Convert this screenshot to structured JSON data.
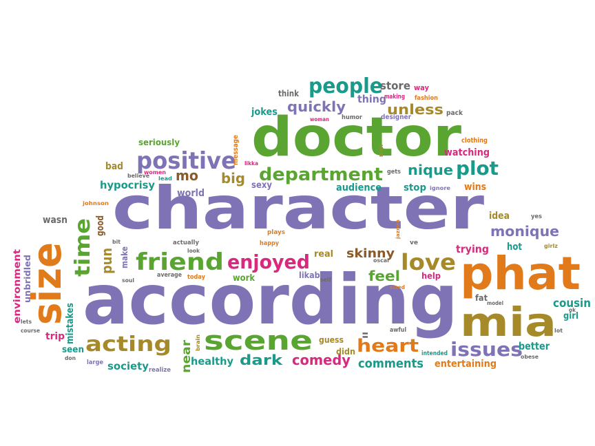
{
  "colors": {
    "purple": "#7f73b5",
    "green": "#5aa532",
    "orange": "#e07a1a",
    "teal": "#1a9a8a",
    "olive": "#a68a2a",
    "pink": "#d8297e",
    "brown": "#8a5a2a",
    "gray": "#6a6a6a"
  },
  "words": [
    {
      "text": "character",
      "color": "purple"
    },
    {
      "text": "according",
      "color": "purple"
    },
    {
      "text": "doctor",
      "color": "green"
    },
    {
      "text": "phat",
      "color": "orange"
    },
    {
      "text": "size",
      "color": "orange"
    },
    {
      "text": "mia",
      "color": "olive"
    },
    {
      "text": "scene",
      "color": "green"
    },
    {
      "text": "friend",
      "color": "green"
    },
    {
      "text": "positive",
      "color": "purple"
    },
    {
      "text": "department",
      "color": "green"
    },
    {
      "text": "enjoyed",
      "color": "pink"
    },
    {
      "text": "love",
      "color": "olive"
    },
    {
      "text": "acting",
      "color": "olive"
    },
    {
      "text": "heart",
      "color": "orange"
    },
    {
      "text": "people",
      "color": "teal"
    },
    {
      "text": "time",
      "color": "green"
    },
    {
      "text": "plot",
      "color": "teal"
    },
    {
      "text": "issues",
      "color": "purple"
    },
    {
      "text": "monique",
      "color": "purple"
    },
    {
      "text": "comedy",
      "color": "pink"
    },
    {
      "text": "dark",
      "color": "teal"
    },
    {
      "text": "unless",
      "color": "olive"
    },
    {
      "text": "quickly",
      "color": "purple"
    },
    {
      "text": "comments",
      "color": "teal"
    },
    {
      "text": "skinny",
      "color": "brown"
    },
    {
      "text": "feel",
      "color": "green"
    },
    {
      "text": "nique",
      "color": "teal"
    },
    {
      "text": "cousin",
      "color": "teal"
    },
    {
      "text": "mo",
      "color": "brown"
    },
    {
      "text": "big",
      "color": "olive"
    },
    {
      "text": "pun",
      "color": "olive"
    },
    {
      "text": "near",
      "color": "green"
    },
    {
      "text": "trying",
      "color": "pink"
    },
    {
      "text": "society",
      "color": "teal"
    },
    {
      "text": "healthy",
      "color": "teal"
    },
    {
      "text": "entertaining",
      "color": "orange"
    },
    {
      "text": "better",
      "color": "teal"
    },
    {
      "text": "audience",
      "color": "teal"
    },
    {
      "text": "hypocrisy",
      "color": "teal"
    },
    {
      "text": "store",
      "color": "gray"
    },
    {
      "text": "thing",
      "color": "purple"
    },
    {
      "text": "watching",
      "color": "pink"
    },
    {
      "text": "wins",
      "color": "orange"
    },
    {
      "text": "stop",
      "color": "teal"
    },
    {
      "text": "hot",
      "color": "teal"
    },
    {
      "text": "idea",
      "color": "olive"
    },
    {
      "text": "mistakes",
      "color": "teal"
    },
    {
      "text": "environment",
      "color": "pink"
    },
    {
      "text": "unbridled",
      "color": "purple"
    },
    {
      "text": "wasn",
      "color": "gray"
    },
    {
      "text": "world",
      "color": "purple"
    },
    {
      "text": "sexy",
      "color": "purple"
    },
    {
      "text": "jokes",
      "color": "teal"
    },
    {
      "text": "bad",
      "color": "olive"
    },
    {
      "text": "seriously",
      "color": "green"
    },
    {
      "text": "good",
      "color": "brown"
    },
    {
      "text": "make",
      "color": "purple"
    },
    {
      "text": "trip",
      "color": "pink"
    },
    {
      "text": "seen",
      "color": "teal"
    },
    {
      "text": "work",
      "color": "green"
    },
    {
      "text": "real",
      "color": "olive"
    },
    {
      "text": "likable",
      "color": "purple"
    },
    {
      "text": "guess",
      "color": "olive"
    },
    {
      "text": "didn",
      "color": "olive"
    },
    {
      "text": "help",
      "color": "pink"
    },
    {
      "text": "girl",
      "color": "teal"
    },
    {
      "text": "fat",
      "color": "gray"
    },
    {
      "text": "think",
      "color": "gray"
    },
    {
      "text": "way",
      "color": "pink"
    },
    {
      "text": "making",
      "color": "pink"
    },
    {
      "text": "fashion",
      "color": "orange"
    },
    {
      "text": "humor",
      "color": "gray"
    },
    {
      "text": "designer",
      "color": "purple"
    },
    {
      "text": "woman",
      "color": "pink"
    },
    {
      "text": "pack",
      "color": "gray"
    },
    {
      "text": "clothing",
      "color": "orange"
    },
    {
      "text": "message",
      "color": "orange"
    },
    {
      "text": "men",
      "color": "olive"
    },
    {
      "text": "likka",
      "color": "pink"
    },
    {
      "text": "gets",
      "color": "gray"
    },
    {
      "text": "women",
      "color": "pink"
    },
    {
      "text": "believe",
      "color": "gray"
    },
    {
      "text": "lead",
      "color": "teal"
    },
    {
      "text": "ignore",
      "color": "purple"
    },
    {
      "text": "johnson",
      "color": "orange"
    },
    {
      "text": "plays",
      "color": "orange"
    },
    {
      "text": "jazmin",
      "color": "orange"
    },
    {
      "text": "yes",
      "color": "gray"
    },
    {
      "text": "girlz",
      "color": "olive"
    },
    {
      "text": "bit",
      "color": "gray"
    },
    {
      "text": "actually",
      "color": "gray"
    },
    {
      "text": "happy",
      "color": "orange"
    },
    {
      "text": "oscar",
      "color": "gray"
    },
    {
      "text": "ve",
      "color": "gray"
    },
    {
      "text": "look",
      "color": "gray"
    },
    {
      "text": "soul",
      "color": "gray"
    },
    {
      "text": "average",
      "color": "gray"
    },
    {
      "text": "today",
      "color": "orange"
    },
    {
      "text": "self",
      "color": "gray"
    },
    {
      "text": "sized",
      "color": "orange"
    },
    {
      "text": "awful",
      "color": "gray"
    },
    {
      "text": "model",
      "color": "gray"
    },
    {
      "text": "lot",
      "color": "gray"
    },
    {
      "text": "ok",
      "color": "gray"
    },
    {
      "text": "lets",
      "color": "gray"
    },
    {
      "text": "course",
      "color": "gray"
    },
    {
      "text": "brain",
      "color": "olive"
    },
    {
      "text": "ll",
      "color": "gray"
    },
    {
      "text": "intended",
      "color": "teal"
    },
    {
      "text": "obese",
      "color": "gray"
    },
    {
      "text": "don",
      "color": "gray"
    },
    {
      "text": "large",
      "color": "purple"
    },
    {
      "text": "realize",
      "color": "purple"
    }
  ]
}
